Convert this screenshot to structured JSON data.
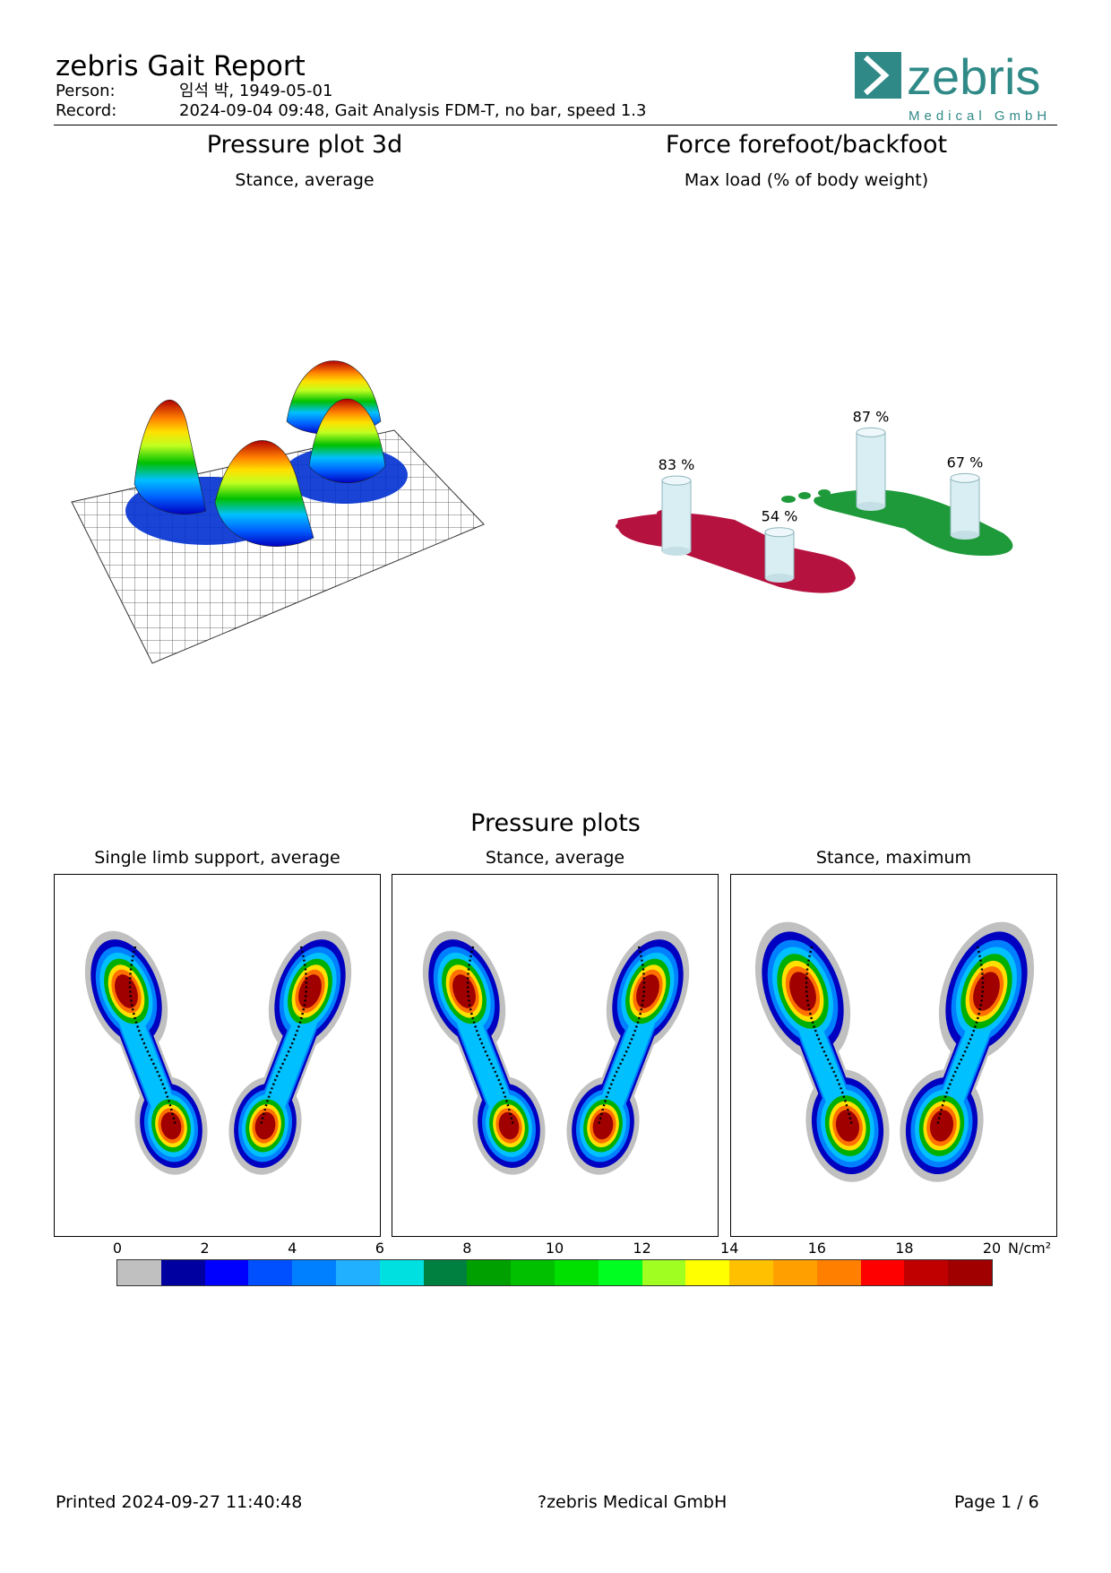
{
  "header": {
    "title": "zebris Gait Report",
    "person_label": "Person:",
    "person_value": "임석 박, 1949-05-01",
    "record_label": "Record:",
    "record_value": "2024-09-04 09:48, Gait Analysis FDM-T, no bar, speed 1.3",
    "logo_word": "zebris",
    "logo_sub": "Medical GmbH",
    "logo_color": "#2f8a87"
  },
  "pressure3d": {
    "title": "Pressure plot 3d",
    "subtitle": "Stance, average"
  },
  "force": {
    "title": "Force forefoot/backfoot",
    "subtitle": "Max load (% of body weight)",
    "left_foot_color": "#b5123f",
    "right_foot_color": "#1f9a3a",
    "loads": [
      {
        "value": "83 %",
        "height": 83
      },
      {
        "value": "54 %",
        "height": 54
      },
      {
        "value": "87 %",
        "height": 87
      },
      {
        "value": "67 %",
        "height": 67
      }
    ]
  },
  "plots": {
    "title": "Pressure plots",
    "panels": [
      {
        "label": "Single limb support, average"
      },
      {
        "label": "Stance, average"
      },
      {
        "label": "Stance, maximum"
      }
    ]
  },
  "scale": {
    "ticks": [
      "0",
      "2",
      "4",
      "6",
      "8",
      "10",
      "12",
      "14",
      "16",
      "18",
      "20"
    ],
    "unit": "N/cm²",
    "colors": [
      "#c0c0c0",
      "#0000a0",
      "#0000ff",
      "#0050ff",
      "#0080ff",
      "#20b0ff",
      "#00e0e0",
      "#008040",
      "#00a000",
      "#00c000",
      "#00e000",
      "#00ff20",
      "#a0ff20",
      "#ffff00",
      "#ffc000",
      "#ffa000",
      "#ff8000",
      "#ff0000",
      "#c00000",
      "#a00000"
    ]
  },
  "footer": {
    "printed": "Printed  2024-09-27 11:40:48",
    "company": "?zebris Medical GmbH",
    "page": "Page  1 / 6"
  }
}
